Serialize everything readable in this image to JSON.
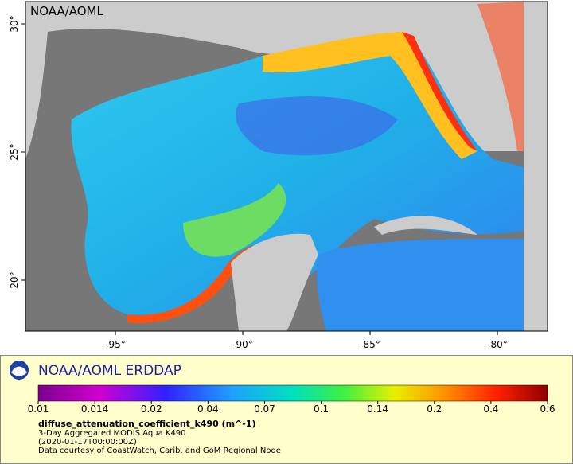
{
  "map": {
    "watermark": "NOAA/AOML",
    "lon_ticks": [
      "-95°",
      "-90°",
      "-85°",
      "-80°"
    ],
    "lat_ticks": [
      "30°",
      "25°",
      "20°"
    ]
  },
  "legend": {
    "title": "NOAA/AOML ERDDAP",
    "colorbar_ticks": [
      "0.01",
      "0.014",
      "0.02",
      "0.04",
      "0.07",
      "0.1",
      "0.14",
      "0.2",
      "0.4",
      "0.6"
    ],
    "variable": "diffuse_attenuation_coefficient_k490 (m^-1)",
    "lines": [
      "3-Day Aggregated MODIS Aqua K490",
      "(2020-01-17T00:00:00Z)",
      "Data courtesy of CoastWatch, Carib. and GoM Regional Node"
    ]
  }
}
